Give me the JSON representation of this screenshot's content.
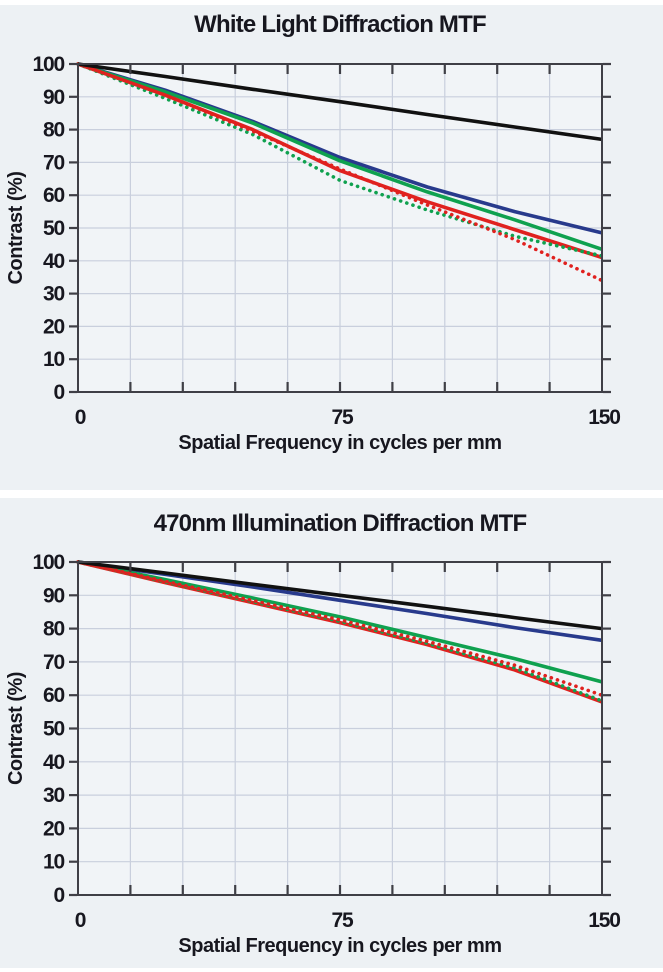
{
  "page": {
    "background": "#ffffff",
    "panel_background": "#edf1f4",
    "plot_background": "#f1f4f7",
    "grid_color": "#c9cfdd",
    "frame_color": "#3f3f46"
  },
  "chart_data": [
    {
      "type": "line",
      "title": "White Light Diffraction MTF",
      "xlabel": "Spatial Frequency in cycles per mm",
      "ylabel": "Contrast (%)",
      "xlim": [
        0,
        150
      ],
      "ylim": [
        0,
        100
      ],
      "grid": true,
      "legend": "none",
      "x_grid_step": 15,
      "y_grid_step": 10,
      "x_tick_labels": [
        {
          "value": 0,
          "label": "0"
        },
        {
          "value": 75,
          "label": "75"
        },
        {
          "value": 150,
          "label": "150"
        }
      ],
      "y_tick_labels": [
        "0",
        "10",
        "20",
        "30",
        "40",
        "50",
        "60",
        "70",
        "80",
        "90",
        "100"
      ],
      "x": [
        0,
        25,
        50,
        75,
        100,
        125,
        150
      ],
      "series": [
        {
          "name": "blue-solid",
          "color": "#283a8c",
          "style": "solid",
          "values": [
            100,
            92,
            82.5,
            71.5,
            62.5,
            55,
            48.5
          ]
        },
        {
          "name": "green-solid",
          "color": "#0fa14f",
          "style": "solid",
          "values": [
            100,
            91.5,
            82,
            70.5,
            61,
            52.5,
            43.5
          ]
        },
        {
          "name": "red-solid",
          "color": "#e0211f",
          "style": "solid",
          "values": [
            100,
            90.5,
            80,
            67.5,
            58,
            49.5,
            41
          ]
        },
        {
          "name": "green-dotted",
          "color": "#0fa14f",
          "style": "dotted",
          "values": [
            100,
            89.5,
            78.5,
            64.5,
            55.5,
            47.5,
            41.5
          ]
        },
        {
          "name": "red-dotted",
          "color": "#e0211f",
          "style": "dotted",
          "values": [
            100,
            90.5,
            79.5,
            68,
            57,
            46.5,
            34
          ]
        },
        {
          "name": "diffraction-limit-black",
          "color": "#111111",
          "style": "solid",
          "values": [
            100,
            96.2,
            92.3,
            88.5,
            84.6,
            80.8,
            77
          ]
        }
      ]
    },
    {
      "type": "line",
      "title": "470nm Illumination Diffraction MTF",
      "xlabel": "Spatial Frequency in cycles per mm",
      "ylabel": "Contrast (%)",
      "xlim": [
        0,
        150
      ],
      "ylim": [
        0,
        100
      ],
      "grid": true,
      "legend": "none",
      "x_grid_step": 15,
      "y_grid_step": 10,
      "x_tick_labels": [
        {
          "value": 0,
          "label": "0"
        },
        {
          "value": 75,
          "label": "75"
        },
        {
          "value": 150,
          "label": "150"
        }
      ],
      "y_tick_labels": [
        "0",
        "10",
        "20",
        "30",
        "40",
        "50",
        "60",
        "70",
        "80",
        "90",
        "100"
      ],
      "x": [
        0,
        25,
        50,
        75,
        100,
        125,
        150
      ],
      "series": [
        {
          "name": "blue-solid",
          "color": "#283a8c",
          "style": "solid",
          "values": [
            100,
            96.3,
            92.5,
            88.5,
            84.5,
            80.3,
            76.5
          ]
        },
        {
          "name": "green-solid",
          "color": "#0fa14f",
          "style": "solid",
          "values": [
            100,
            94.7,
            89.2,
            83.5,
            77.3,
            71,
            64
          ]
        },
        {
          "name": "red-solid",
          "color": "#e0211f",
          "style": "solid",
          "values": [
            100,
            93.8,
            87.8,
            81.8,
            75.2,
            67.6,
            58
          ]
        },
        {
          "name": "green-dotted",
          "color": "#0fa14f",
          "style": "dotted",
          "values": [
            100,
            94,
            88.1,
            82.2,
            75.6,
            68.2,
            58.3
          ]
        },
        {
          "name": "red-dotted",
          "color": "#e0211f",
          "style": "dotted",
          "values": [
            100,
            94.2,
            88.4,
            82.6,
            76.2,
            69,
            60
          ]
        },
        {
          "name": "diffraction-limit-black",
          "color": "#111111",
          "style": "solid",
          "values": [
            100,
            96.7,
            93.3,
            90,
            86.7,
            83.3,
            80
          ]
        }
      ]
    }
  ]
}
